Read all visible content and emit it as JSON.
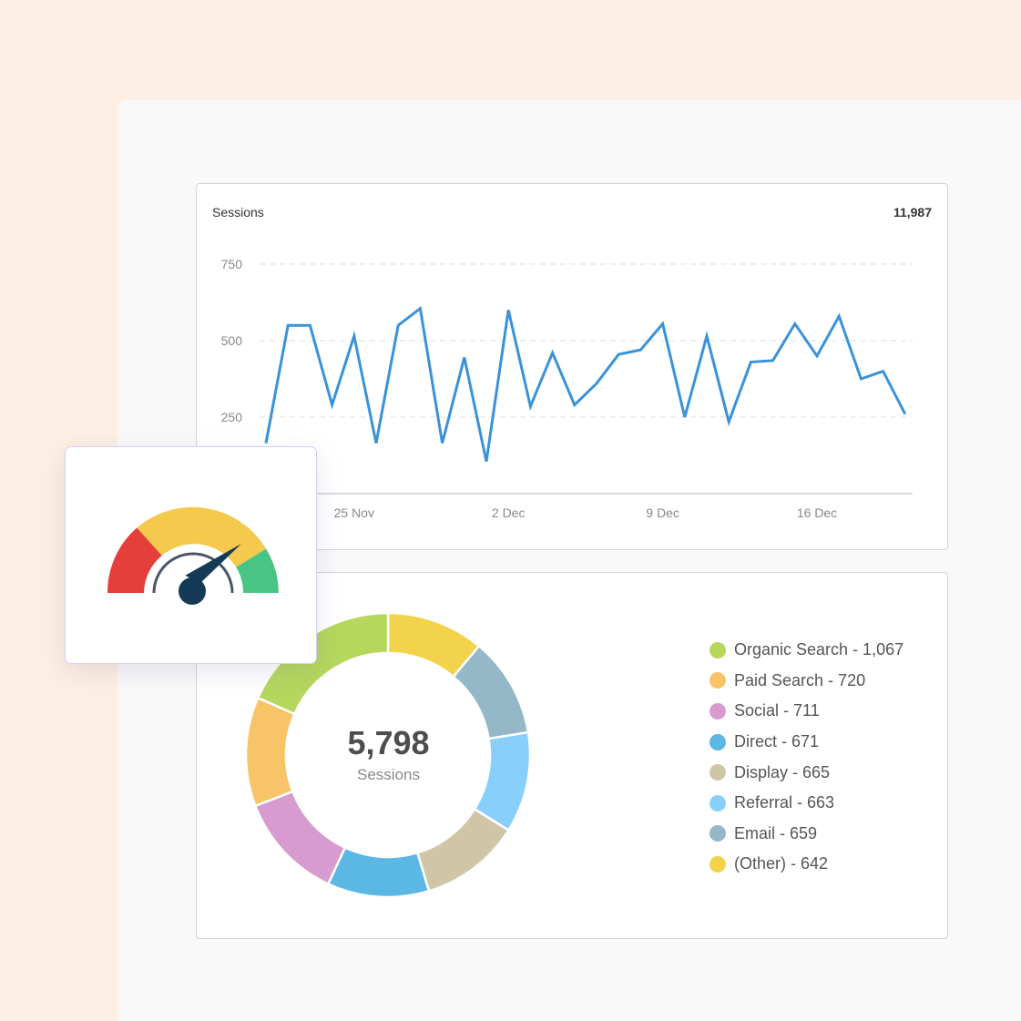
{
  "line_chart": {
    "title": "Sessions",
    "total": "11,987",
    "color": "#3a92d9"
  },
  "donut_chart": {
    "center_value": "5,798",
    "center_label": "Sessions"
  },
  "gauge": {
    "icon": "speedometer-icon",
    "colors": {
      "red": "#e43f3b",
      "yellow": "#f5c94c",
      "green": "#48c584",
      "needle": "#143a56"
    }
  },
  "chart_data": [
    {
      "type": "line",
      "title": "",
      "xlabel": "",
      "ylabel": "",
      "ylim": [
        0,
        750
      ],
      "yticks": [
        250,
        500,
        750
      ],
      "grid": true,
      "x_tick_labels": [
        {
          "day": 4,
          "label": "25 Nov"
        },
        {
          "day": 11,
          "label": "2 Dec"
        },
        {
          "day": 18,
          "label": "9 Dec"
        },
        {
          "day": 25,
          "label": "16 Dec"
        }
      ],
      "series": [
        {
          "values": [
            165,
            550,
            550,
            290,
            515,
            165,
            550,
            605,
            165,
            445,
            105,
            600,
            285,
            460,
            290,
            360,
            455,
            470,
            555,
            250,
            515,
            235,
            430,
            435,
            555,
            450,
            580,
            375,
            400,
            260
          ]
        }
      ]
    },
    {
      "type": "pie",
      "total": "5,798",
      "slices": [
        {
          "label": "Organic Search - 1,067",
          "value": 1067,
          "color": "#b4d75c"
        },
        {
          "label": "Paid Search - 720",
          "value": 720,
          "color": "#f8c468"
        },
        {
          "label": "Social - 711",
          "value": 711,
          "color": "#d89bd0"
        },
        {
          "label": "Direct - 671",
          "value": 671,
          "color": "#5bb7e4"
        },
        {
          "label": "Display - 665",
          "value": 665,
          "color": "#cfc6a8"
        },
        {
          "label": "Referral - 663",
          "value": 663,
          "color": "#88d0fb"
        },
        {
          "label": "Email - 659",
          "value": 659,
          "color": "#95b8c8"
        },
        {
          "label": "(Other) - 642",
          "value": 642,
          "color": "#f2d34b"
        }
      ]
    }
  ]
}
